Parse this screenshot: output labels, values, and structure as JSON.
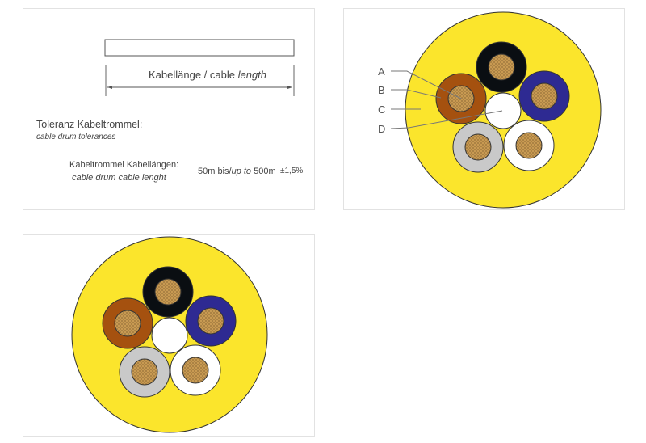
{
  "length_diagram": {
    "label_de": "Kabellänge / cable ",
    "label_en_italic": "length"
  },
  "tolerance": {
    "title_de": "Toleranz Kabeltrommel:",
    "title_en": "cable drum tolerances",
    "row_label_de": "Kabeltrommel Kabellängen:",
    "row_label_en": "cable drum cable lenght",
    "range_pre": "50m bis/",
    "range_italic": "up to",
    "range_post": " 500m",
    "tolerance_value": "±1,5%"
  },
  "cross_section": {
    "labels": [
      "A",
      "B",
      "C",
      "D"
    ],
    "colors": {
      "sheath": "#fbe52c",
      "core_black": "#0a0e12",
      "core_brown": "#a5510f",
      "core_blue": "#2e2a92",
      "core_gray": "#c9c9c9",
      "core_white": "#ffffff",
      "filler": "#ffffff",
      "conductor": "#c89a52"
    }
  }
}
